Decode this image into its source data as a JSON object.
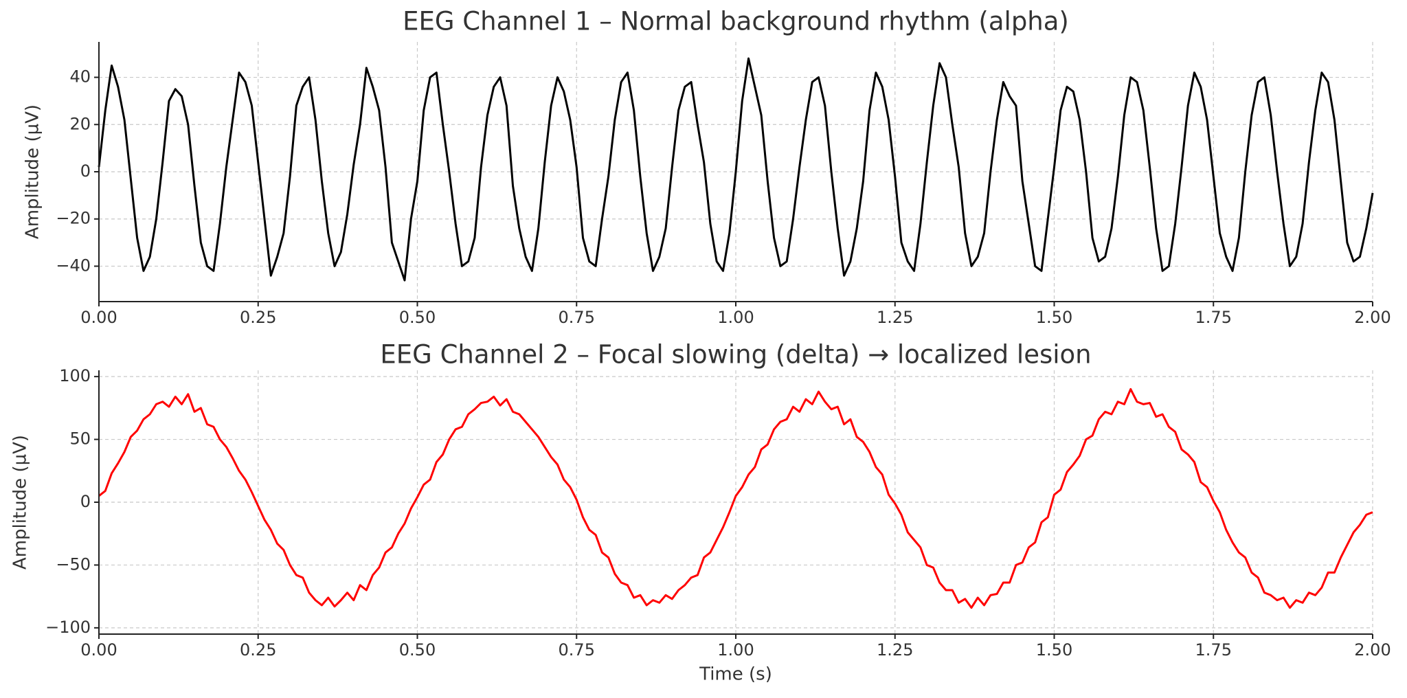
{
  "chart_data": [
    {
      "type": "line",
      "title": "EEG Channel 1 – Normal background rhythm (alpha)",
      "ylabel": "Amplitude (µV)",
      "color": "#000000",
      "grid": true,
      "xlim": [
        0,
        2
      ],
      "ylim": [
        -55,
        55
      ],
      "xticks": [
        {
          "value": 0,
          "label": "0.00"
        },
        {
          "value": 0.25,
          "label": "0.25"
        },
        {
          "value": 0.5,
          "label": "0.50"
        },
        {
          "value": 0.75,
          "label": "0.75"
        },
        {
          "value": 1,
          "label": "1.00"
        },
        {
          "value": 1.25,
          "label": "1.25"
        },
        {
          "value": 1.5,
          "label": "1.50"
        },
        {
          "value": 1.75,
          "label": "1.75"
        },
        {
          "value": 2,
          "label": "2.00"
        }
      ],
      "yticks": [
        {
          "value": -40,
          "label": "−40"
        },
        {
          "value": -20,
          "label": "−20"
        },
        0,
        20,
        40
      ],
      "x": [
        0,
        0.01,
        0.02,
        0.03,
        0.04,
        0.05,
        0.06,
        0.07,
        0.08,
        0.09,
        0.1,
        0.11,
        0.12,
        0.13,
        0.14,
        0.15,
        0.16,
        0.17,
        0.18,
        0.19,
        0.2,
        0.21,
        0.22,
        0.23,
        0.24,
        0.25,
        0.26,
        0.27,
        0.28,
        0.29,
        0.3,
        0.31,
        0.32,
        0.33,
        0.34,
        0.35,
        0.36,
        0.37,
        0.38,
        0.39,
        0.4,
        0.41,
        0.42,
        0.43,
        0.44,
        0.45,
        0.46,
        0.47,
        0.48,
        0.49,
        0.5,
        0.51,
        0.52,
        0.53,
        0.54,
        0.55,
        0.56,
        0.57,
        0.58,
        0.59,
        0.6,
        0.61,
        0.62,
        0.63,
        0.64,
        0.65,
        0.66,
        0.67,
        0.68,
        0.69,
        0.7,
        0.71,
        0.72,
        0.73,
        0.74,
        0.75,
        0.76,
        0.77,
        0.78,
        0.79,
        0.8,
        0.81,
        0.82,
        0.83,
        0.84,
        0.85,
        0.86,
        0.87,
        0.88,
        0.89,
        0.9,
        0.91,
        0.92,
        0.93,
        0.94,
        0.95,
        0.96,
        0.97,
        0.98,
        0.99,
        1,
        1.01,
        1.02,
        1.03,
        1.04,
        1.05,
        1.06,
        1.07,
        1.08,
        1.09,
        1.1,
        1.11,
        1.12,
        1.13,
        1.14,
        1.15,
        1.16,
        1.17,
        1.18,
        1.19,
        1.2,
        1.21,
        1.22,
        1.23,
        1.24,
        1.25,
        1.26,
        1.27,
        1.28,
        1.29,
        1.3,
        1.31,
        1.32,
        1.33,
        1.34,
        1.35,
        1.36,
        1.37,
        1.38,
        1.39,
        1.4,
        1.41,
        1.42,
        1.43,
        1.44,
        1.45,
        1.46,
        1.47,
        1.48,
        1.49,
        1.5,
        1.51,
        1.52,
        1.53,
        1.54,
        1.55,
        1.56,
        1.57,
        1.58,
        1.59,
        1.6,
        1.61,
        1.62,
        1.63,
        1.64,
        1.65,
        1.66,
        1.67,
        1.68,
        1.69,
        1.7,
        1.71,
        1.72,
        1.73,
        1.74,
        1.75,
        1.76,
        1.77,
        1.78,
        1.79,
        1.8,
        1.81,
        1.82,
        1.83,
        1.84,
        1.85,
        1.86,
        1.87,
        1.88,
        1.89,
        1.9,
        1.91,
        1.92,
        1.93,
        1.94,
        1.95,
        1.96,
        1.97,
        1.98,
        1.99,
        2
      ],
      "values": [
        2,
        26,
        45,
        36,
        22,
        -3,
        -28,
        -42,
        -36,
        -20,
        4,
        30,
        35,
        32,
        20,
        -6,
        -30,
        -40,
        -42,
        -22,
        2,
        22,
        42,
        38,
        28,
        4,
        -20,
        -44,
        -36,
        -26,
        -2,
        28,
        36,
        40,
        22,
        -4,
        -26,
        -40,
        -34,
        -18,
        3,
        20,
        44,
        36,
        26,
        2,
        -30,
        -38,
        -46,
        -20,
        -4,
        26,
        40,
        42,
        20,
        0,
        -22,
        -40,
        -38,
        -28,
        2,
        24,
        36,
        40,
        28,
        -6,
        -24,
        -36,
        -42,
        -24,
        4,
        28,
        40,
        34,
        22,
        2,
        -28,
        -38,
        -40,
        -20,
        -2,
        22,
        38,
        42,
        26,
        -2,
        -26,
        -42,
        -36,
        -24,
        2,
        26,
        36,
        38,
        20,
        4,
        -22,
        -38,
        -42,
        -26,
        0,
        30,
        48,
        36,
        24,
        -4,
        -28,
        -40,
        -38,
        -20,
        2,
        22,
        38,
        40,
        28,
        0,
        -24,
        -44,
        -38,
        -24,
        -4,
        26,
        42,
        36,
        22,
        -2,
        -30,
        -38,
        -42,
        -22,
        4,
        28,
        46,
        40,
        20,
        2,
        -26,
        -40,
        -36,
        -26,
        0,
        22,
        38,
        32,
        28,
        -4,
        -22,
        -40,
        -42,
        -20,
        2,
        26,
        36,
        34,
        22,
        0,
        -28,
        -38,
        -36,
        -24,
        -2,
        24,
        40,
        38,
        26,
        2,
        -24,
        -42,
        -40,
        -22,
        2,
        28,
        42,
        36,
        22,
        -2,
        -26,
        -36,
        -42,
        -28,
        0,
        24,
        38,
        40,
        24,
        0,
        -22,
        -40,
        -36,
        -22,
        4,
        26,
        42,
        38,
        22,
        -4,
        -30,
        -38,
        -36,
        -24,
        -9
      ]
    },
    {
      "type": "line",
      "title": "EEG Channel 2 – Focal slowing (delta) → localized lesion",
      "ylabel": "Amplitude (µV)",
      "xlabel": "Time (s)",
      "color": "#ff0000",
      "grid": true,
      "xlim": [
        0,
        2
      ],
      "ylim": [
        -105,
        105
      ],
      "xticks": [
        {
          "value": 0,
          "label": "0.00"
        },
        {
          "value": 0.25,
          "label": "0.25"
        },
        {
          "value": 0.5,
          "label": "0.50"
        },
        {
          "value": 0.75,
          "label": "0.75"
        },
        {
          "value": 1,
          "label": "1.00"
        },
        {
          "value": 1.25,
          "label": "1.25"
        },
        {
          "value": 1.5,
          "label": "1.50"
        },
        {
          "value": 1.75,
          "label": "1.75"
        },
        {
          "value": 2,
          "label": "2.00"
        }
      ],
      "yticks": [
        {
          "value": -100,
          "label": "−100"
        },
        {
          "value": -50,
          "label": "−50"
        },
        0,
        50,
        100
      ],
      "x": [
        0,
        0.01,
        0.02,
        0.03,
        0.04,
        0.05,
        0.06,
        0.07,
        0.08,
        0.09,
        0.1,
        0.11,
        0.12,
        0.13,
        0.14,
        0.15,
        0.16,
        0.17,
        0.18,
        0.19,
        0.2,
        0.21,
        0.22,
        0.23,
        0.24,
        0.25,
        0.26,
        0.27,
        0.28,
        0.29,
        0.3,
        0.31,
        0.32,
        0.33,
        0.34,
        0.35,
        0.36,
        0.37,
        0.38,
        0.39,
        0.4,
        0.41,
        0.42,
        0.43,
        0.44,
        0.45,
        0.46,
        0.47,
        0.48,
        0.49,
        0.5,
        0.51,
        0.52,
        0.53,
        0.54,
        0.55,
        0.56,
        0.57,
        0.58,
        0.59,
        0.6,
        0.61,
        0.62,
        0.63,
        0.64,
        0.65,
        0.66,
        0.67,
        0.68,
        0.69,
        0.7,
        0.71,
        0.72,
        0.73,
        0.74,
        0.75,
        0.76,
        0.77,
        0.78,
        0.79,
        0.8,
        0.81,
        0.82,
        0.83,
        0.84,
        0.85,
        0.86,
        0.87,
        0.88,
        0.89,
        0.9,
        0.91,
        0.92,
        0.93,
        0.94,
        0.95,
        0.96,
        0.97,
        0.98,
        0.99,
        1,
        1.01,
        1.02,
        1.03,
        1.04,
        1.05,
        1.06,
        1.07,
        1.08,
        1.09,
        1.1,
        1.11,
        1.12,
        1.13,
        1.14,
        1.15,
        1.16,
        1.17,
        1.18,
        1.19,
        1.2,
        1.21,
        1.22,
        1.23,
        1.24,
        1.25,
        1.26,
        1.27,
        1.28,
        1.29,
        1.3,
        1.31,
        1.32,
        1.33,
        1.34,
        1.35,
        1.36,
        1.37,
        1.38,
        1.39,
        1.4,
        1.41,
        1.42,
        1.43,
        1.44,
        1.45,
        1.46,
        1.47,
        1.48,
        1.49,
        1.5,
        1.51,
        1.52,
        1.53,
        1.54,
        1.55,
        1.56,
        1.57,
        1.58,
        1.59,
        1.6,
        1.61,
        1.62,
        1.63,
        1.64,
        1.65,
        1.66,
        1.67,
        1.68,
        1.69,
        1.7,
        1.71,
        1.72,
        1.73,
        1.74,
        1.75,
        1.76,
        1.77,
        1.78,
        1.79,
        1.8,
        1.81,
        1.82,
        1.83,
        1.84,
        1.85,
        1.86,
        1.87,
        1.88,
        1.89,
        1.9,
        1.91,
        1.92,
        1.93,
        1.94,
        1.95,
        1.96,
        1.97,
        1.98,
        1.99,
        2
      ],
      "values": [
        5,
        9,
        23,
        31,
        40,
        52,
        57,
        66,
        70,
        78,
        80,
        76,
        84,
        78,
        86,
        72,
        75,
        62,
        60,
        50,
        44,
        35,
        25,
        18,
        8,
        -3,
        -14,
        -22,
        -33,
        -38,
        -50,
        -58,
        -60,
        -72,
        -78,
        -82,
        -76,
        -83,
        -78,
        -72,
        -78,
        -66,
        -70,
        -58,
        -52,
        -40,
        -36,
        -25,
        -17,
        -5,
        4,
        14,
        18,
        32,
        38,
        50,
        58,
        60,
        70,
        74,
        79,
        80,
        84,
        77,
        82,
        72,
        70,
        64,
        58,
        52,
        44,
        36,
        30,
        18,
        12,
        2,
        -12,
        -22,
        -26,
        -40,
        -44,
        -57,
        -64,
        -66,
        -76,
        -74,
        -82,
        -78,
        -80,
        -74,
        -77,
        -70,
        -66,
        -60,
        -58,
        -44,
        -40,
        -30,
        -20,
        -8,
        5,
        12,
        22,
        28,
        42,
        46,
        58,
        64,
        66,
        76,
        72,
        82,
        78,
        88,
        80,
        74,
        76,
        62,
        66,
        52,
        48,
        40,
        28,
        22,
        6,
        -1,
        -10,
        -24,
        -30,
        -36,
        -50,
        -52,
        -64,
        -70,
        -70,
        -80,
        -77,
        -84,
        -76,
        -82,
        -74,
        -73,
        -64,
        -64,
        -50,
        -48,
        -36,
        -32,
        -16,
        -12,
        6,
        10,
        24,
        30,
        37,
        50,
        53,
        66,
        72,
        70,
        80,
        78,
        90,
        80,
        78,
        79,
        68,
        70,
        60,
        56,
        42,
        38,
        32,
        16,
        12,
        1,
        -8,
        -22,
        -32,
        -40,
        -44,
        -56,
        -60,
        -72,
        -74,
        -78,
        -76,
        -84,
        -78,
        -80,
        -72,
        -74,
        -68,
        -56,
        -56,
        -44,
        -34,
        -24,
        -18,
        -10,
        -8
      ]
    }
  ]
}
